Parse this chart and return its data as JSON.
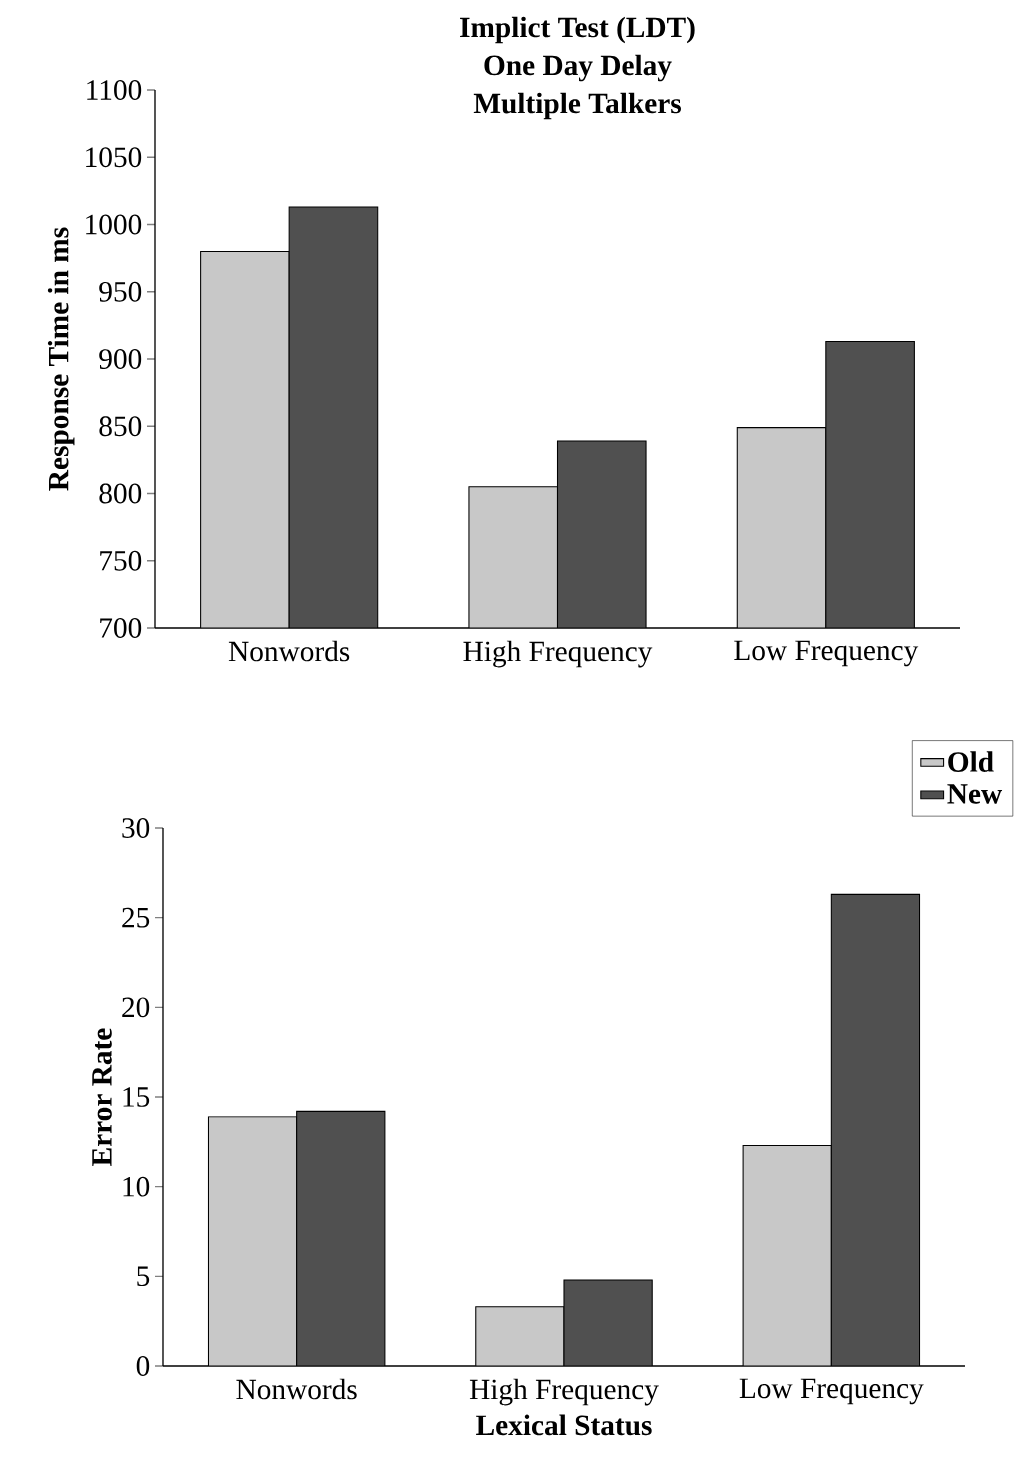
{
  "chart_data": [
    {
      "type": "bar",
      "title": "Implict Test (LDT)",
      "subtitle": "One Day Delay",
      "annotations": [
        "Multiple Talkers"
      ],
      "ylabel": "Response Time in ms",
      "categories": [
        "Nonwords",
        "High Frequency",
        "Low Frequency"
      ],
      "ylim": [
        700,
        1100
      ],
      "yticks": [
        700,
        750,
        800,
        850,
        900,
        950,
        1000,
        1050,
        1100
      ],
      "legend": false,
      "grid": false,
      "series": [
        {
          "color": "#c8c8c8",
          "values": [
            980,
            805,
            849
          ]
        },
        {
          "color": "#505050",
          "values": [
            1013,
            839,
            913
          ]
        }
      ]
    },
    {
      "type": "bar",
      "xlabel": "Lexical Status",
      "ylabel": "Error Rate",
      "categories": [
        "Nonwords",
        "High Frequency",
        "Low Frequency"
      ],
      "ylim": [
        0,
        30
      ],
      "yticks": [
        0,
        5,
        10,
        15,
        20,
        25,
        30
      ],
      "legend": "top right",
      "grid": false,
      "series": [
        {
          "name": "Old",
          "color": "#c8c8c8",
          "values": [
            13.9,
            3.3,
            12.3
          ]
        },
        {
          "name": "New",
          "color": "#505050",
          "values": [
            14.2,
            4.8,
            26.3
          ]
        }
      ]
    }
  ]
}
